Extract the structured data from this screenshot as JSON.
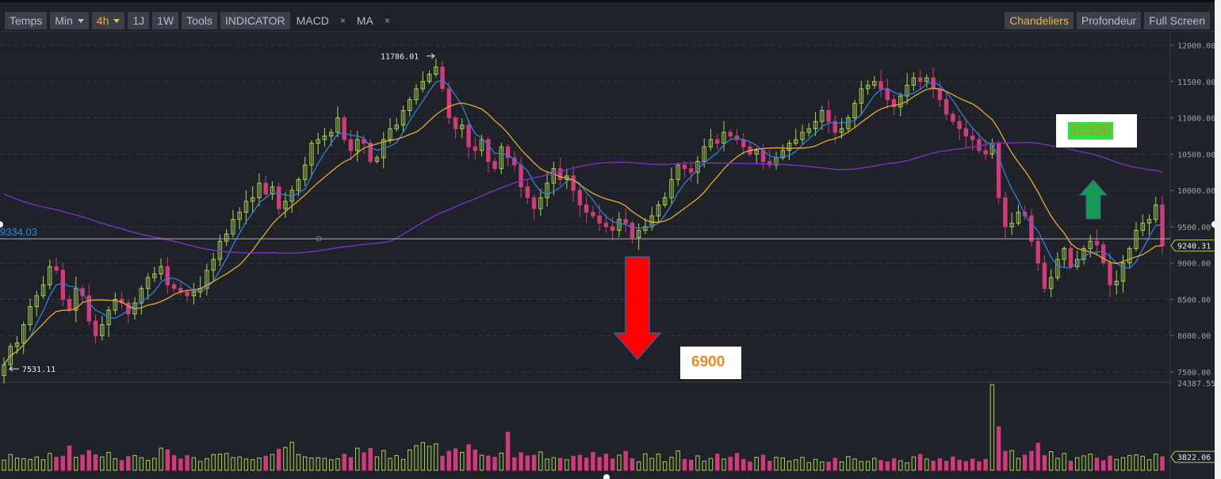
{
  "toolbar": {
    "temps": "Temps",
    "min": "Min",
    "h4": "4h",
    "j1": "1J",
    "w1": "1W",
    "tools": "Tools",
    "indicator": "INDICATOR",
    "macd": "MACD",
    "ma": "MA",
    "close_glyph": "×",
    "chandeliers": "Chandeliers",
    "profondeur": "Profondeur",
    "fullscreen": "Full Screen"
  },
  "colors": {
    "up": "#a6d44d",
    "down": "#d23a7c",
    "ma_fast": "#2f7fd8",
    "ma_mid": "#e2ac2c",
    "ma_slow": "#7a2fc9",
    "crosshair": "#aab0b8",
    "crosshair_label": "#2a8ed8",
    "arrow_down": "#ff0000",
    "arrow_up": "#169a56"
  },
  "annotations": {
    "low_target": "6900",
    "high_target": "10300"
  },
  "chart_data": {
    "type": "candlestick",
    "timeframe": "4h",
    "price_axis": {
      "ticks": [
        "12000.00",
        "11500.00",
        "11000.00",
        "10500.00",
        "10000.00",
        "9500.00",
        "9000.00",
        "8500.00",
        "8000.00",
        "7500.00"
      ],
      "ylim": [
        7400,
        12100
      ]
    },
    "volume_axis": {
      "max_label": "24387.55",
      "current_label": "3822.06"
    },
    "high_marker": "11786.01",
    "low_marker": "7531.11",
    "crosshair_price": "9334.03",
    "last_price": "9240.31",
    "close": [
      7600,
      7850,
      7900,
      8150,
      8400,
      8550,
      8700,
      8950,
      8900,
      8500,
      8350,
      8650,
      8550,
      8200,
      8000,
      8150,
      8350,
      8500,
      8450,
      8300,
      8450,
      8650,
      8800,
      8850,
      8950,
      8700,
      8650,
      8600,
      8550,
      8600,
      8650,
      8900,
      9050,
      9300,
      9400,
      9600,
      9700,
      9850,
      9900,
      10100,
      9950,
      10050,
      9750,
      9850,
      10000,
      10150,
      10350,
      10650,
      10700,
      10750,
      10800,
      11000,
      10700,
      10550,
      10700,
      10650,
      10400,
      10450,
      10700,
      10850,
      10900,
      11100,
      11250,
      11400,
      11500,
      11600,
      11700,
      11400,
      11000,
      10850,
      10900,
      10600,
      10550,
      10700,
      10400,
      10300,
      10600,
      10450,
      10350,
      10050,
      9900,
      9750,
      9900,
      10100,
      10300,
      10150,
      10200,
      10000,
      9800,
      9700,
      9650,
      9550,
      9500,
      9450,
      9600,
      9550,
      9350,
      9450,
      9500,
      9650,
      9800,
      9900,
      10150,
      10350,
      10300,
      10250,
      10400,
      10600,
      10700,
      10650,
      10800,
      10750,
      10700,
      10600,
      10500,
      10550,
      10400,
      10350,
      10450,
      10550,
      10650,
      10700,
      10800,
      10850,
      10950,
      11100,
      10950,
      10800,
      10850,
      11000,
      11200,
      11400,
      11450,
      11500,
      11400,
      11250,
      11150,
      11300,
      11450,
      11550,
      11500,
      11550,
      11400,
      11250,
      11050,
      10950,
      10850,
      10750,
      10700,
      10550,
      10500,
      10650,
      9900,
      9500,
      9550,
      9700,
      9650,
      9300,
      9000,
      8650,
      8800,
      9050,
      9200,
      8950,
      9050,
      9200,
      9300,
      9250,
      9000,
      8700,
      8750,
      9000,
      9200,
      9450,
      9550,
      9600,
      9800,
      9240
    ],
    "volume": [
      2900,
      4500,
      3500,
      3300,
      3100,
      3800,
      3000,
      4800,
      3700,
      4000,
      6900,
      3700,
      4300,
      5600,
      4400,
      3800,
      5100,
      3300,
      2800,
      3900,
      4200,
      3600,
      2800,
      3400,
      6300,
      5800,
      4200,
      3200,
      4200,
      3600,
      2500,
      3300,
      4500,
      4600,
      4800,
      3600,
      3800,
      3200,
      3000,
      3500,
      4000,
      4500,
      6000,
      6500,
      8000,
      4500,
      3800,
      3500,
      3600,
      3400,
      3000,
      3300,
      4600,
      3600,
      6300,
      5000,
      6200,
      3800,
      5600,
      3400,
      4200,
      3100,
      5800,
      7000,
      7900,
      6800,
      7500,
      4000,
      5400,
      6100,
      5100,
      7300,
      5800,
      4300,
      4100,
      3700,
      4900,
      10800,
      3600,
      5000,
      4100,
      4300,
      5200,
      3200,
      3600,
      3400,
      3000,
      4000,
      4300,
      3500,
      5100,
      3700,
      4600,
      3200,
      4300,
      5400,
      3300,
      2400,
      4700,
      3400,
      4600,
      2400,
      3700,
      5500,
      3100,
      2900,
      4100,
      2600,
      3400,
      4600,
      3200,
      3700,
      4800,
      3100,
      2400,
      3700,
      4300,
      2600,
      3700,
      3500,
      2600,
      3000,
      3700,
      2200,
      3100,
      2400,
      2300,
      3400,
      2400,
      3900,
      3200,
      2500,
      2500,
      3400,
      2800,
      2400,
      3300,
      2700,
      2100,
      3800,
      4500,
      3200,
      2600,
      3300,
      2600,
      3800,
      2900,
      2500,
      3200,
      2400,
      3100,
      24387,
      12400,
      5400,
      5600,
      3400,
      4300,
      5400,
      7700,
      4200,
      5300,
      3400,
      4800,
      2600,
      3600,
      4100,
      4600,
      3500,
      2700,
      4000,
      3100,
      3600,
      4200,
      4400,
      4000,
      3000,
      4600,
      3822
    ]
  }
}
